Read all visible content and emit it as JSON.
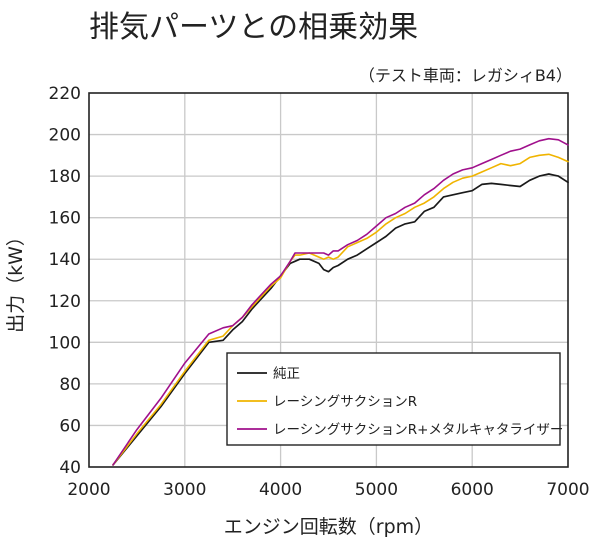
{
  "title": "排気パーツとの相乗効果",
  "subtitle": "（テスト車両：レガシィB4）",
  "chart_data": {
    "type": "line",
    "title": "排気パーツとの相乗効果",
    "subtitle": "（テスト車両：レガシィB4）",
    "xlabel": "エンジン回転数（rpm）",
    "ylabel": "出力（kW）",
    "xlim": [
      2000,
      7000
    ],
    "ylim": [
      40,
      220
    ],
    "xticks": [
      "2000",
      "3000",
      "4000",
      "5000",
      "6000",
      "7000"
    ],
    "yticks": [
      "40",
      "60",
      "80",
      "100",
      "120",
      "140",
      "160",
      "180",
      "200",
      "220"
    ],
    "grid": true,
    "legend_position": "bottom-right",
    "series": [
      {
        "name": "純正",
        "color": "#1a1a1a",
        "x": [
          2250,
          2500,
          2750,
          3000,
          3250,
          3400,
          3500,
          3600,
          3700,
          3800,
          3900,
          4000,
          4100,
          4150,
          4200,
          4300,
          4400,
          4450,
          4500,
          4550,
          4600,
          4700,
          4800,
          4900,
          5000,
          5100,
          5200,
          5300,
          5400,
          5500,
          5600,
          5700,
          5800,
          5900,
          6000,
          6100,
          6200,
          6300,
          6400,
          6500,
          6600,
          6700,
          6800,
          6850,
          6900,
          7000
        ],
        "y": [
          41,
          55,
          69,
          85,
          100,
          101,
          106,
          110,
          116,
          121,
          126,
          132,
          138,
          139,
          140,
          140,
          138,
          135,
          134,
          136,
          137,
          140,
          142,
          145,
          148,
          151,
          155,
          157,
          158,
          163,
          165,
          170,
          171,
          172,
          173,
          176,
          176.5,
          176,
          175.5,
          175,
          178,
          180,
          181,
          180.5,
          180,
          177
        ]
      },
      {
        "name": "レーシングサクションR",
        "color": "#f0b400",
        "x": [
          2250,
          2500,
          2750,
          3000,
          3250,
          3400,
          3500,
          3600,
          3700,
          3800,
          3900,
          4000,
          4100,
          4150,
          4200,
          4300,
          4400,
          4450,
          4500,
          4550,
          4600,
          4700,
          4800,
          4900,
          5000,
          5100,
          5200,
          5300,
          5400,
          5500,
          5600,
          5700,
          5800,
          5900,
          6000,
          6100,
          6200,
          6300,
          6400,
          6500,
          6600,
          6700,
          6800,
          6900,
          7000
        ],
        "y": [
          41,
          56,
          70,
          86,
          101,
          103,
          108,
          112,
          117,
          122,
          127,
          131,
          139,
          142,
          142,
          143,
          141,
          140,
          141,
          140,
          141,
          146,
          148,
          150,
          153,
          157,
          160,
          162,
          165,
          167,
          170,
          174,
          177,
          179,
          180,
          182,
          184,
          186,
          185,
          186,
          189,
          190,
          190.5,
          189,
          187
        ]
      },
      {
        "name": "レーシングサクションR+メタルキャタライザー",
        "color": "#a0108c",
        "x": [
          2250,
          2500,
          2750,
          3000,
          3250,
          3400,
          3500,
          3600,
          3700,
          3800,
          3900,
          4000,
          4100,
          4150,
          4200,
          4300,
          4400,
          4450,
          4500,
          4550,
          4600,
          4700,
          4800,
          4900,
          5000,
          5100,
          5200,
          5300,
          5400,
          5500,
          5600,
          5700,
          5800,
          5900,
          6000,
          6100,
          6200,
          6300,
          6400,
          6500,
          6600,
          6700,
          6800,
          6900,
          7000
        ],
        "y": [
          41,
          58,
          73,
          90,
          104,
          107,
          108,
          112,
          118,
          123,
          128,
          132,
          139,
          143,
          143,
          143,
          143,
          143,
          142,
          144,
          144,
          147,
          149,
          152,
          156,
          160,
          162,
          165,
          167,
          171,
          174,
          178,
          181,
          183,
          184,
          186,
          188,
          190,
          192,
          193,
          195,
          197,
          198,
          197.5,
          195
        ]
      }
    ]
  }
}
